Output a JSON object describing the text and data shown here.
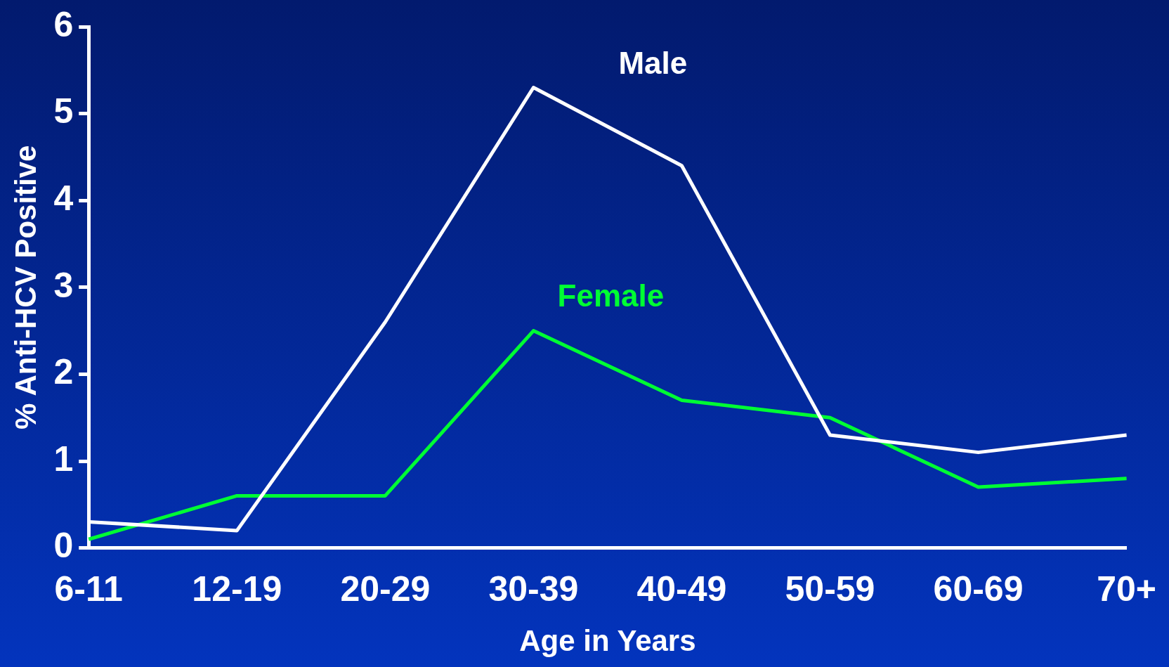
{
  "chart_data": {
    "type": "line",
    "xlabel": "Age in Years",
    "ylabel": "% Anti-HCV Positive",
    "categories": [
      "6-11",
      "12-19",
      "20-29",
      "30-39",
      "40-49",
      "50-59",
      "60-69",
      "70+"
    ],
    "series": [
      {
        "name": "Male",
        "color": "#ffffff",
        "values": [
          0.3,
          0.2,
          2.6,
          5.3,
          4.4,
          1.3,
          1.1,
          1.3
        ]
      },
      {
        "name": "Female",
        "color": "#00ff33",
        "values": [
          0.1,
          0.6,
          0.6,
          2.5,
          1.7,
          1.5,
          0.7,
          0.8
        ]
      }
    ],
    "ylim": [
      0,
      6
    ],
    "yticks": [
      0,
      1,
      2,
      3,
      4,
      5,
      6
    ],
    "grid": false,
    "legend": false,
    "marker": "none",
    "line_style": "solid"
  }
}
